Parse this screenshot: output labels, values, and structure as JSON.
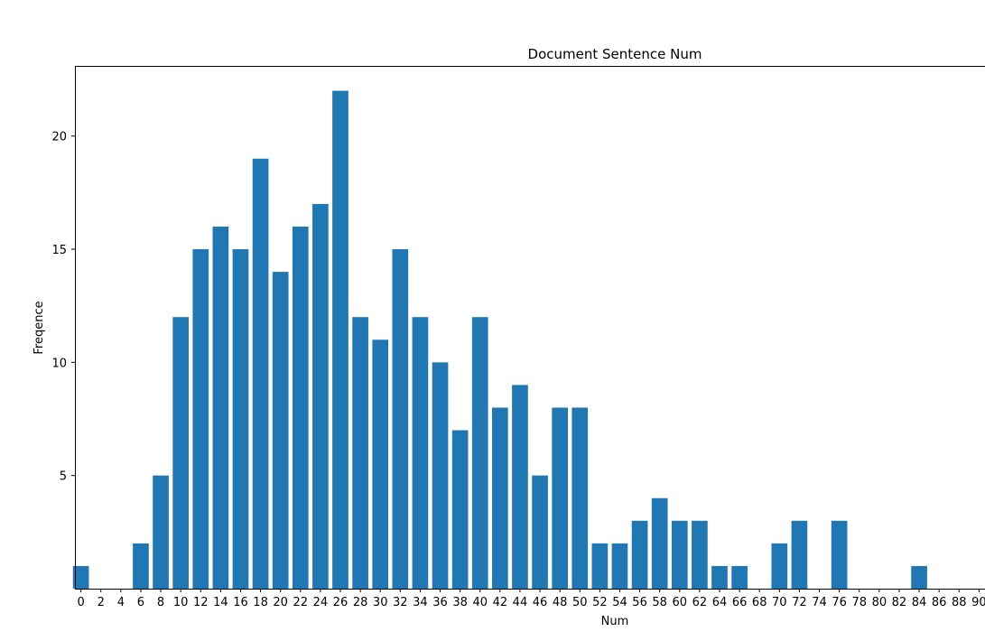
{
  "chart_data": {
    "type": "bar",
    "title": "Document Sentence Num",
    "xlabel": "Num",
    "ylabel": "Freqence",
    "bar_color": "#1f77b4",
    "grid": false,
    "xlim": [
      -0.6,
      90.6
    ],
    "ylim": [
      0,
      23.1
    ],
    "x_ticks": [
      0,
      2,
      4,
      6,
      8,
      10,
      12,
      14,
      16,
      18,
      20,
      22,
      24,
      26,
      28,
      30,
      32,
      34,
      36,
      38,
      40,
      42,
      44,
      46,
      48,
      50,
      52,
      54,
      56,
      58,
      60,
      62,
      64,
      66,
      68,
      70,
      72,
      74,
      76,
      78,
      80,
      82,
      84,
      86,
      88,
      90
    ],
    "y_ticks": [
      5,
      10,
      15,
      20
    ],
    "x": [
      0,
      6,
      8,
      10,
      12,
      14,
      16,
      18,
      20,
      22,
      24,
      26,
      28,
      30,
      32,
      34,
      36,
      38,
      40,
      42,
      44,
      46,
      48,
      50,
      52,
      54,
      56,
      58,
      60,
      62,
      64,
      66,
      70,
      72,
      76,
      84
    ],
    "values": [
      1,
      2,
      5,
      12,
      15,
      16,
      15,
      19,
      14,
      16,
      17,
      22,
      12,
      11,
      15,
      12,
      10,
      7,
      12,
      8,
      9,
      5,
      8,
      8,
      2,
      2,
      3,
      4,
      3,
      3,
      1,
      1,
      2,
      3,
      3,
      1
    ]
  }
}
